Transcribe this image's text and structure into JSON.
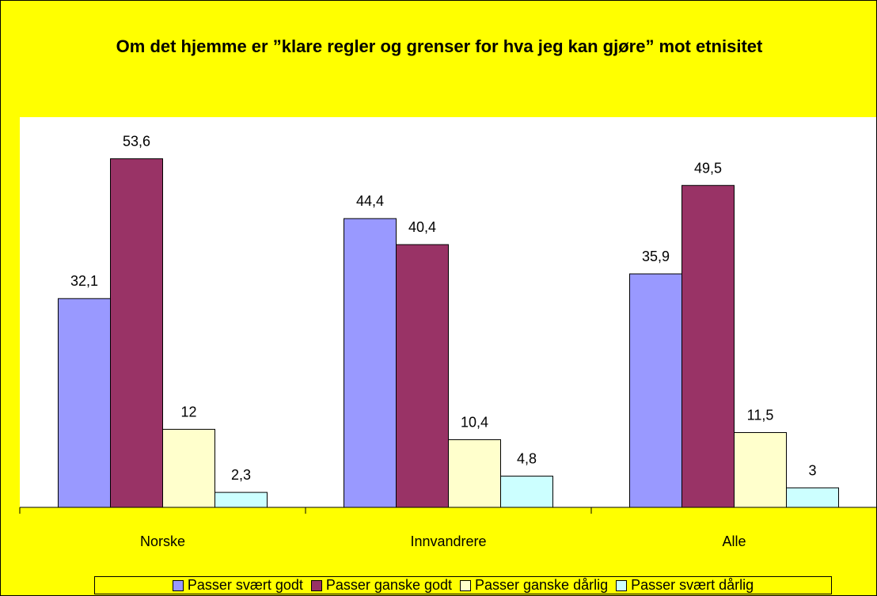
{
  "chart_data": {
    "type": "bar",
    "title": "Om det hjemme er ”klare regler og grenser for hva jeg kan gjøre” mot etnisitet",
    "categories": [
      "Norske",
      "Innvandrere",
      "Alle"
    ],
    "ylim": [
      0,
      60
    ],
    "legend": "bottom",
    "series": [
      {
        "name": "Passer svært godt",
        "color": "#9999ff",
        "values": [
          32.1,
          44.4,
          35.9
        ],
        "value_labels": [
          "32,1",
          "44,4",
          "35,9"
        ]
      },
      {
        "name": "Passer ganske godt",
        "color": "#993366",
        "values": [
          53.6,
          40.4,
          49.5
        ],
        "value_labels": [
          "53,6",
          "40,4",
          "49,5"
        ]
      },
      {
        "name": "Passer ganske dårlig",
        "color": "#ffffcc",
        "values": [
          12,
          10.4,
          11.5
        ],
        "value_labels": [
          "12",
          "10,4",
          "11,5"
        ]
      },
      {
        "name": "Passer svært dårlig",
        "color": "#ccffff",
        "values": [
          2.3,
          4.8,
          3
        ],
        "value_labels": [
          "2,3",
          "4,8",
          "3"
        ]
      }
    ]
  }
}
